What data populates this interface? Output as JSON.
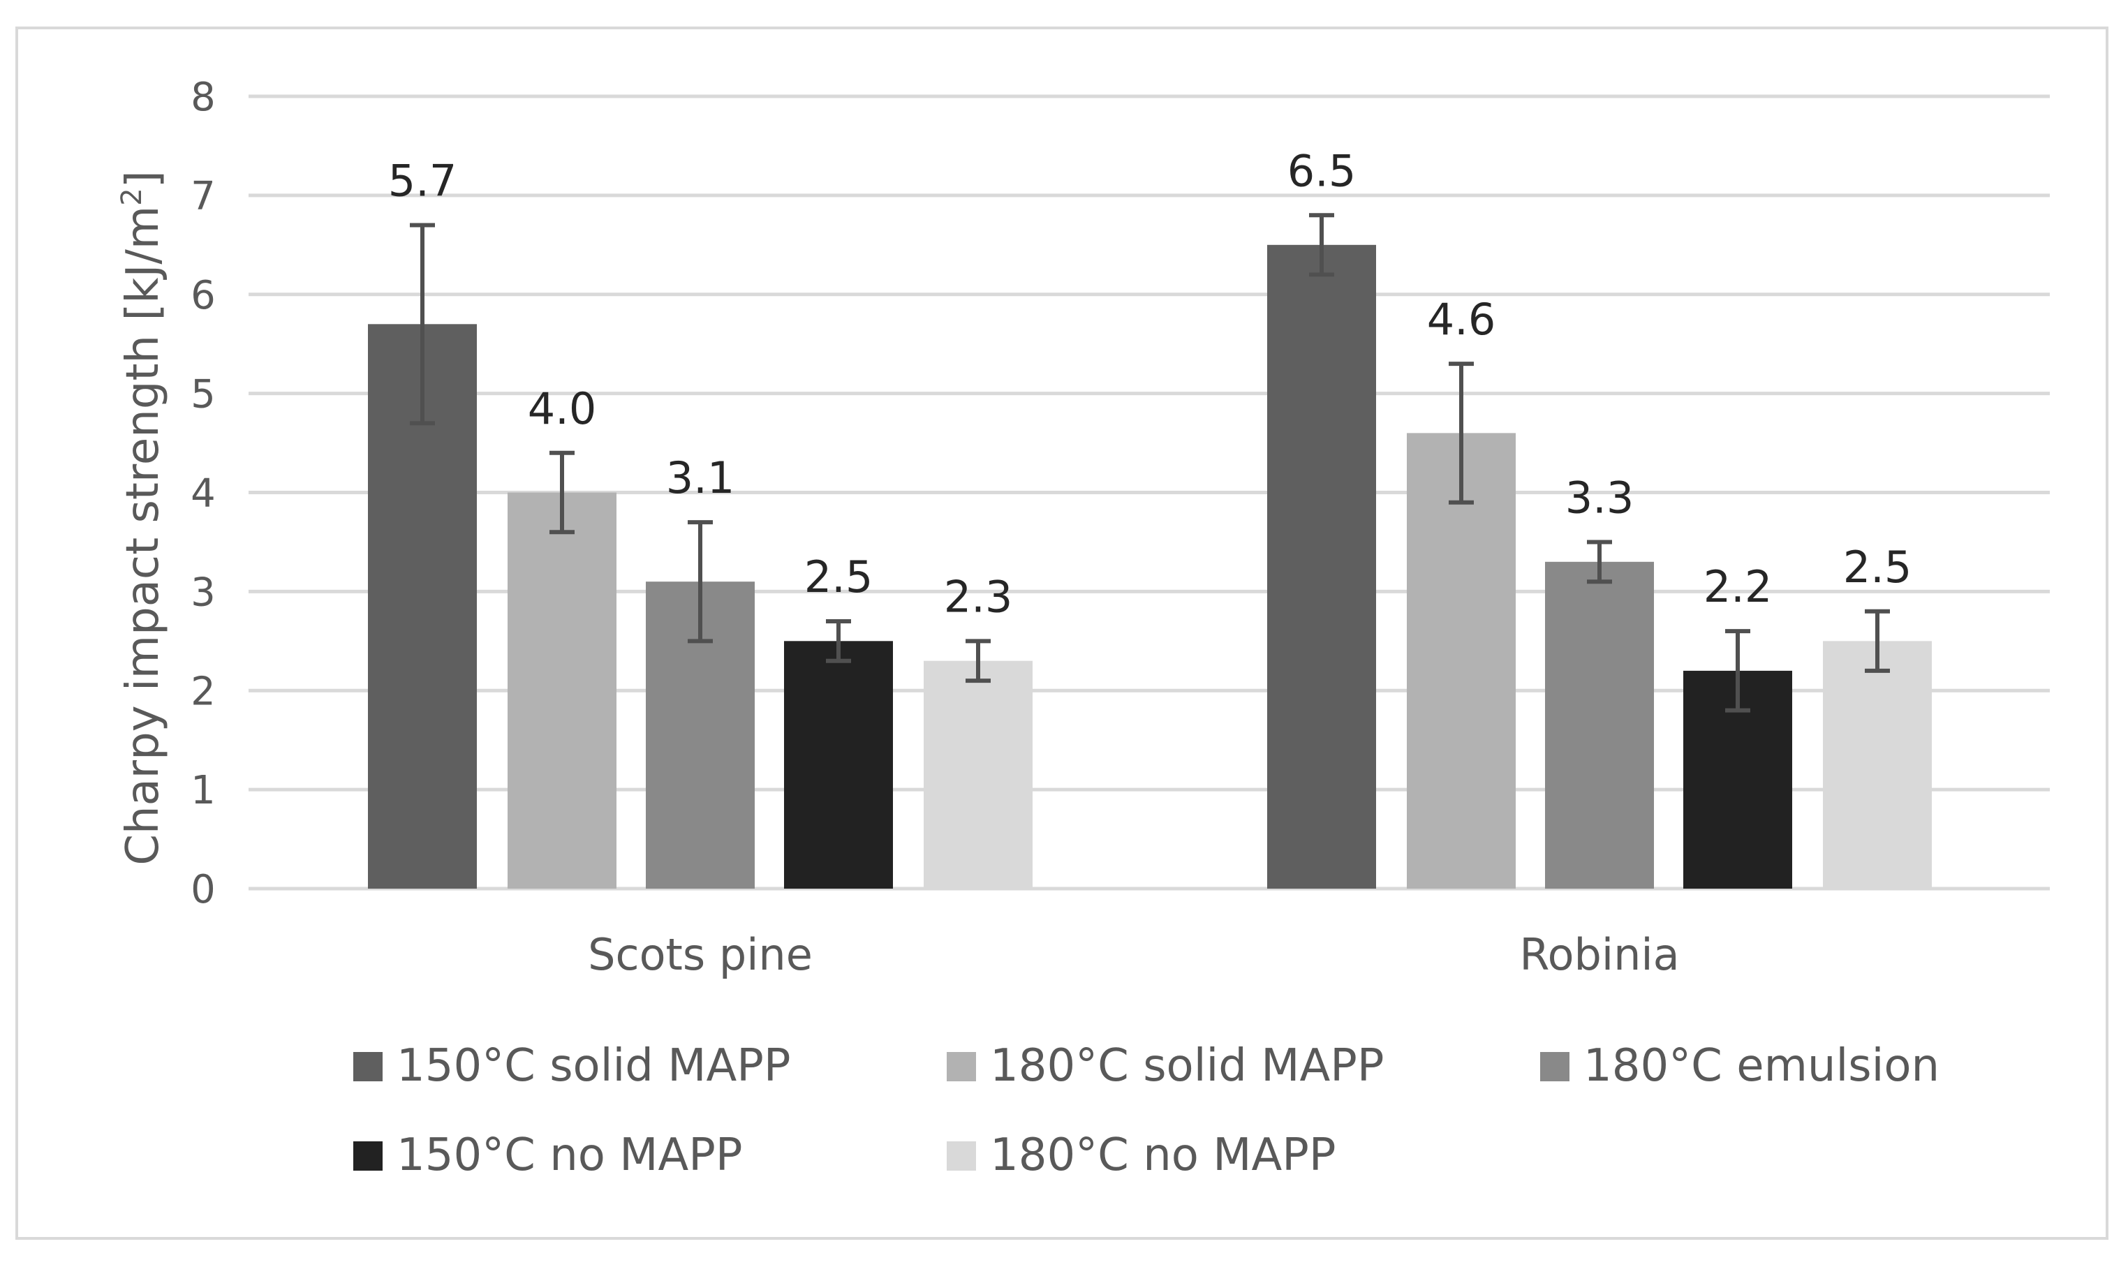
{
  "chart_data": {
    "type": "bar",
    "title": "",
    "xlabel": "",
    "ylabel_main": "Charpy impact strength [kJ/m",
    "ylabel_sup": "2",
    "ylabel_end": "]",
    "ylim": [
      0,
      8
    ],
    "yticks": [
      "0",
      "1",
      "2",
      "3",
      "4",
      "5",
      "6",
      "7",
      "8"
    ],
    "grid": true,
    "legend_position": "bottom",
    "categories": [
      "Scots pine",
      "Robinia"
    ],
    "series": [
      {
        "name": "150°C solid MAPP",
        "color": "#5f5f5f",
        "values": [
          5.7,
          6.5
        ],
        "labels": [
          "5.7",
          "6.5"
        ],
        "errors": [
          1.0,
          0.3
        ]
      },
      {
        "name": "180°C solid MAPP",
        "color": "#b2b2b2",
        "values": [
          4.0,
          4.6
        ],
        "labels": [
          "4.0",
          "4.6"
        ],
        "errors": [
          0.4,
          0.7
        ]
      },
      {
        "name": "180°C emulsion",
        "color": "#898989",
        "values": [
          3.1,
          3.3
        ],
        "labels": [
          "3.1",
          "3.3"
        ],
        "errors": [
          0.6,
          0.2
        ]
      },
      {
        "name": "150°C no MAPP",
        "color": "#222222",
        "values": [
          2.5,
          2.2
        ],
        "labels": [
          "2.5",
          "2.2"
        ],
        "errors": [
          0.2,
          0.4
        ]
      },
      {
        "name": "180°C no MAPP",
        "color": "#d9d9d9",
        "values": [
          2.3,
          2.5
        ],
        "labels": [
          "2.3",
          "2.5"
        ],
        "errors": [
          0.2,
          0.3
        ]
      }
    ],
    "gridline_color": "#d9d9d9",
    "errorbar_color": "#505050"
  }
}
